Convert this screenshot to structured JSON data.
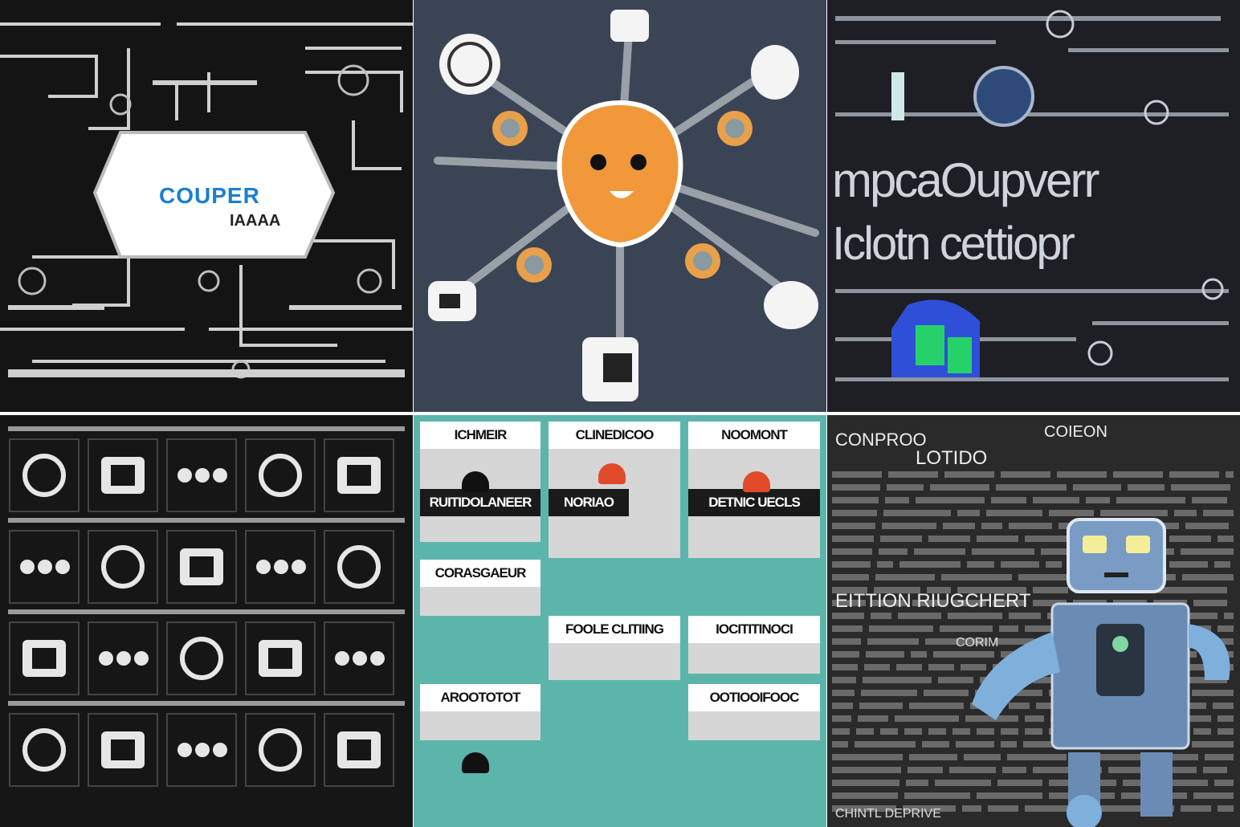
{
  "tiles": [
    {
      "badge_line1": "COUPER",
      "badge_line2": "IAAAA",
      "colors": {
        "bg": "#141414",
        "accent": "#1a7fd1"
      }
    },
    {
      "colors": {
        "bg": "#3a4454",
        "face": "#f0983a"
      }
    },
    {
      "headline_line1": "mpcaOupverr",
      "headline_line2": "Iclotn cettiopr",
      "colors": {
        "bg": "#1e1f24",
        "text": "#cfd3dc",
        "accent": "#2f4fd8"
      }
    },
    {
      "colors": {
        "bg": "#161616"
      }
    },
    {
      "cards": [
        "ICHMEIR",
        "CLINEDICOO",
        "NOOMONT",
        "RUITIDOLANEER",
        "NORIAO",
        "DETNIC UECLS",
        "CORASGAEUR",
        "FOOLE CLITIING",
        "IOCITITINOCI",
        "AROOTOTOT",
        "OOTIOOIFOOC"
      ],
      "colors": {
        "bg": "#5cb5ab"
      }
    },
    {
      "words": [
        "CONPROO",
        "COIEON",
        "LOTIDO",
        "EITTION RIUGCHERT",
        "CORIM",
        "CHINTL DEPRIVE"
      ],
      "colors": {
        "bg": "#2a2a2a",
        "robot": "#7a9cc4"
      }
    }
  ]
}
